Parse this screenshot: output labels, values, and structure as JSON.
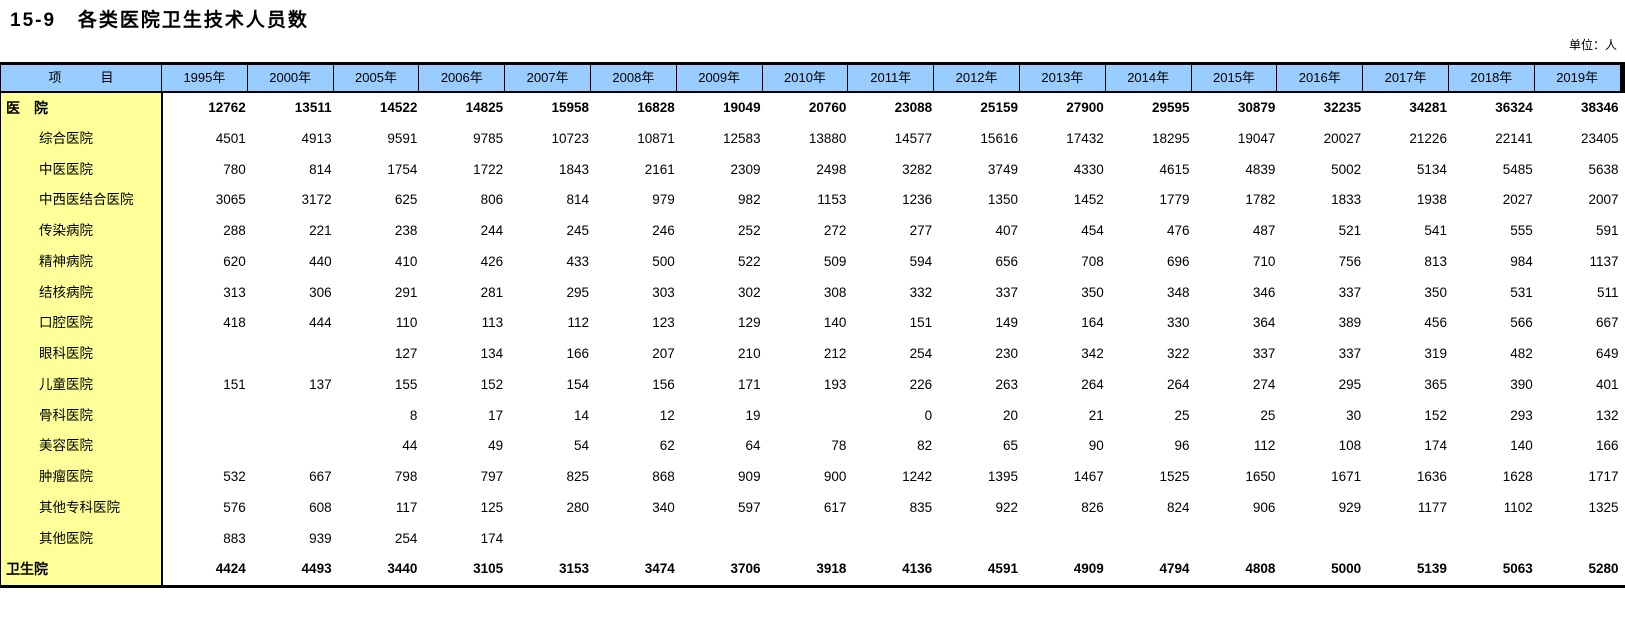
{
  "page_title": "15-9   各类医院卫生技术人员数",
  "unit_label": "单位：人",
  "colors": {
    "header_bg": "#99CCFF",
    "item_bg": "#FFFF99",
    "border": "#000000"
  },
  "table": {
    "item_header": "项　　　目",
    "years": [
      "1995年",
      "2000年",
      "2005年",
      "2006年",
      "2007年",
      "2008年",
      "2009年",
      "2010年",
      "2011年",
      "2012年",
      "2013年",
      "2014年",
      "2015年",
      "2016年",
      "2017年",
      "2018年",
      "2019年"
    ],
    "rows": [
      {
        "label": "医　院",
        "group": true,
        "values": [
          "12762",
          "13511",
          "14522",
          "14825",
          "15958",
          "16828",
          "19049",
          "20760",
          "23088",
          "25159",
          "27900",
          "29595",
          "30879",
          "32235",
          "34281",
          "36324",
          "38346"
        ]
      },
      {
        "label": "综合医院",
        "group": false,
        "values": [
          "4501",
          "4913",
          "9591",
          "9785",
          "10723",
          "10871",
          "12583",
          "13880",
          "14577",
          "15616",
          "17432",
          "18295",
          "19047",
          "20027",
          "21226",
          "22141",
          "23405"
        ]
      },
      {
        "label": "中医医院",
        "group": false,
        "values": [
          "780",
          "814",
          "1754",
          "1722",
          "1843",
          "2161",
          "2309",
          "2498",
          "3282",
          "3749",
          "4330",
          "4615",
          "4839",
          "5002",
          "5134",
          "5485",
          "5638"
        ]
      },
      {
        "label": "中西医结合医院",
        "group": false,
        "values": [
          "3065",
          "3172",
          "625",
          "806",
          "814",
          "979",
          "982",
          "1153",
          "1236",
          "1350",
          "1452",
          "1779",
          "1782",
          "1833",
          "1938",
          "2027",
          "2007"
        ]
      },
      {
        "label": "传染病院",
        "group": false,
        "values": [
          "288",
          "221",
          "238",
          "244",
          "245",
          "246",
          "252",
          "272",
          "277",
          "407",
          "454",
          "476",
          "487",
          "521",
          "541",
          "555",
          "591"
        ]
      },
      {
        "label": "精神病院",
        "group": false,
        "values": [
          "620",
          "440",
          "410",
          "426",
          "433",
          "500",
          "522",
          "509",
          "594",
          "656",
          "708",
          "696",
          "710",
          "756",
          "813",
          "984",
          "1137"
        ]
      },
      {
        "label": "结核病院",
        "group": false,
        "values": [
          "313",
          "306",
          "291",
          "281",
          "295",
          "303",
          "302",
          "308",
          "332",
          "337",
          "350",
          "348",
          "346",
          "337",
          "350",
          "531",
          "511"
        ]
      },
      {
        "label": "口腔医院",
        "group": false,
        "values": [
          "418",
          "444",
          "110",
          "113",
          "112",
          "123",
          "129",
          "140",
          "151",
          "149",
          "164",
          "330",
          "364",
          "389",
          "456",
          "566",
          "667"
        ]
      },
      {
        "label": "眼科医院",
        "group": false,
        "values": [
          "",
          "",
          "127",
          "134",
          "166",
          "207",
          "210",
          "212",
          "254",
          "230",
          "342",
          "322",
          "337",
          "337",
          "319",
          "482",
          "649"
        ]
      },
      {
        "label": "儿童医院",
        "group": false,
        "values": [
          "151",
          "137",
          "155",
          "152",
          "154",
          "156",
          "171",
          "193",
          "226",
          "263",
          "264",
          "264",
          "274",
          "295",
          "365",
          "390",
          "401"
        ]
      },
      {
        "label": "骨科医院",
        "group": false,
        "values": [
          "",
          "",
          "8",
          "17",
          "14",
          "12",
          "19",
          "",
          "0",
          "20",
          "21",
          "25",
          "25",
          "30",
          "152",
          "293",
          "132"
        ]
      },
      {
        "label": "美容医院",
        "group": false,
        "values": [
          "",
          "",
          "44",
          "49",
          "54",
          "62",
          "64",
          "78",
          "82",
          "65",
          "90",
          "96",
          "112",
          "108",
          "174",
          "140",
          "166"
        ]
      },
      {
        "label": "肿瘤医院",
        "group": false,
        "values": [
          "532",
          "667",
          "798",
          "797",
          "825",
          "868",
          "909",
          "900",
          "1242",
          "1395",
          "1467",
          "1525",
          "1650",
          "1671",
          "1636",
          "1628",
          "1717"
        ]
      },
      {
        "label": "其他专科医院",
        "group": false,
        "values": [
          "576",
          "608",
          "117",
          "125",
          "280",
          "340",
          "597",
          "617",
          "835",
          "922",
          "826",
          "824",
          "906",
          "929",
          "1177",
          "1102",
          "1325"
        ]
      },
      {
        "label": "其他医院",
        "group": false,
        "values": [
          "883",
          "939",
          "254",
          "174",
          "",
          "",
          "",
          "",
          "",
          "",
          "",
          "",
          "",
          "",
          "",
          "",
          ""
        ]
      },
      {
        "label": "卫生院",
        "group": true,
        "values": [
          "4424",
          "4493",
          "3440",
          "3105",
          "3153",
          "3474",
          "3706",
          "3918",
          "4136",
          "4591",
          "4909",
          "4794",
          "4808",
          "5000",
          "5139",
          "5063",
          "5280"
        ]
      }
    ]
  }
}
